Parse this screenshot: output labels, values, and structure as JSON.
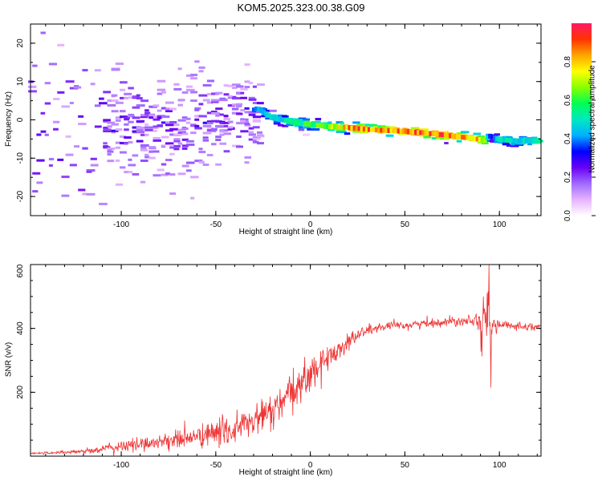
{
  "title": "KOM5.2025.323.00.38.G09",
  "colors": {
    "snr_line": "#ee3333",
    "background": "#ffffff",
    "frame": "#000000",
    "colormap": [
      "#ffffff",
      "#e6b3ff",
      "#a06bff",
      "#6a00f5",
      "#0000ff",
      "#00b0ff",
      "#00e8c0",
      "#00ff55",
      "#88ff00",
      "#ffff00",
      "#ffa500",
      "#ff3300",
      "#ff1a66"
    ]
  },
  "chart_data": [
    {
      "type": "heatmap",
      "name": "spectrogram",
      "xlabel": "Height of straight line (km)",
      "ylabel": "Frequency (Hz)",
      "xlim": [
        -148,
        122
      ],
      "ylim": [
        -25,
        25
      ],
      "xticks": [
        -100,
        -50,
        0,
        50,
        100
      ],
      "xtick_labels": [
        "-100",
        "-50",
        "0",
        "50",
        "100"
      ],
      "yticks": [
        -20,
        -10,
        0,
        10,
        20
      ],
      "ytick_labels": [
        "-20",
        "-10",
        "0",
        "10",
        "20"
      ],
      "colorbar": {
        "label": "Normalized spectral amplitude",
        "range": [
          0,
          1
        ],
        "ticks": [
          0,
          0.2,
          0.4,
          0.6,
          0.8
        ],
        "tick_labels": [
          "0.0",
          "0.2",
          "0.4",
          "0.6",
          "0.8"
        ]
      },
      "ridge": {
        "x": [
          -148,
          -120,
          -100,
          -80,
          -60,
          -40,
          -28,
          -20,
          -10,
          0,
          10,
          20,
          30,
          40,
          50,
          60,
          70,
          80,
          88,
          92,
          95,
          100,
          110,
          122
        ],
        "freq": [
          -2,
          -2,
          -2,
          -1.5,
          -0.5,
          0.5,
          3,
          0.5,
          -0.5,
          -1.2,
          -1.8,
          -2.0,
          -2.5,
          -2.8,
          -3.0,
          -3.4,
          -3.9,
          -4.5,
          -5.0,
          -5.3,
          -4.2,
          -5.2,
          -5.5,
          -5.5
        ],
        "amplitude": [
          0.1,
          0.12,
          0.15,
          0.15,
          0.18,
          0.22,
          0.45,
          0.45,
          0.55,
          0.6,
          0.65,
          0.85,
          0.9,
          0.85,
          0.9,
          0.92,
          0.9,
          0.85,
          0.8,
          0.7,
          0.3,
          0.5,
          0.5,
          0.5
        ]
      }
    },
    {
      "type": "line",
      "name": "snr",
      "xlabel": "Height of straight line (km)",
      "ylabel": "SNR (v/v)",
      "xlim": [
        -148,
        122
      ],
      "ylim": [
        0,
        600
      ],
      "xticks": [
        -100,
        -50,
        0,
        50,
        100
      ],
      "xtick_labels": [
        "-100",
        "-50",
        "0",
        "50",
        "100"
      ],
      "yticks": [
        200,
        400,
        600
      ],
      "ytick_labels": [
        "200",
        "400",
        "600"
      ],
      "trend": {
        "x": [
          -148,
          -120,
          -100,
          -80,
          -60,
          -40,
          -30,
          -20,
          -10,
          0,
          10,
          20,
          30,
          40,
          50,
          60,
          70,
          80,
          88,
          90,
          92,
          94,
          96,
          100,
          110,
          122
        ],
        "y": [
          8,
          15,
          30,
          45,
          60,
          85,
          110,
          140,
          190,
          260,
          310,
          360,
          395,
          405,
          410,
          415,
          420,
          425,
          430,
          420,
          410,
          405,
          410,
          410,
          408,
          405
        ],
        "noise": [
          3,
          6,
          15,
          20,
          30,
          40,
          45,
          50,
          55,
          45,
          35,
          25,
          15,
          12,
          12,
          12,
          12,
          14,
          16,
          60,
          80,
          90,
          30,
          12,
          10,
          10
        ]
      },
      "spikes": [
        {
          "x": 94.5,
          "y": 600
        },
        {
          "x": 95.5,
          "y": 215
        },
        {
          "x": 93.5,
          "y": 510
        }
      ]
    }
  ]
}
